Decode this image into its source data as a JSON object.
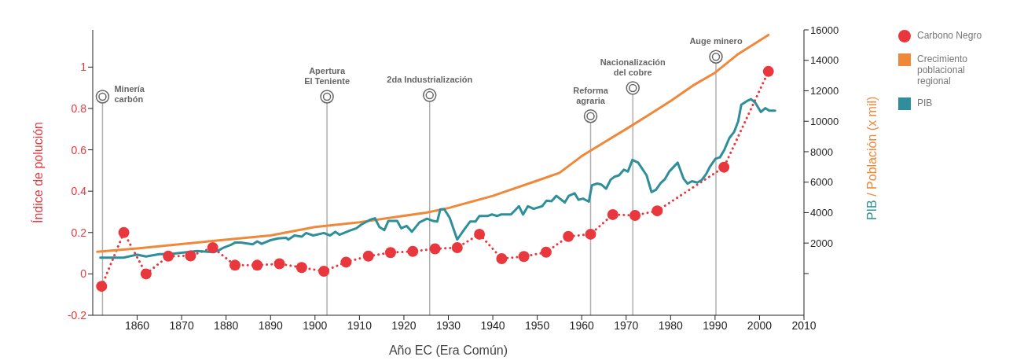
{
  "chart_data": {
    "type": "line",
    "xlabel": "Año EC (Era Común)",
    "ylabel": "Índice de polución",
    "y2label": "PIB / Población (x mil)",
    "xlim": [
      1850,
      2010
    ],
    "xticks": [
      1860,
      1870,
      1880,
      1890,
      1900,
      1910,
      1920,
      1930,
      1940,
      1950,
      1960,
      1970,
      1980,
      1990,
      2000,
      2010
    ],
    "ylim": [
      -0.2,
      1.18
    ],
    "yticks": [
      -0.2,
      0,
      0.2,
      0.4,
      0.6,
      0.8,
      1
    ],
    "y2lim": [
      -2740,
      16000
    ],
    "y2ticks": [
      {
        "value": 0,
        "label": null
      },
      2000,
      4000,
      6000,
      8000,
      10000,
      12000,
      14000,
      16000
    ],
    "legend": "right",
    "series": [
      {
        "name": "Carbono Negro",
        "color": "#e8383d",
        "marker": "circle",
        "line_style": "dotted",
        "x": [
          1852,
          1857,
          1862,
          1867,
          1872,
          1877,
          1882,
          1887,
          1892,
          1897,
          1902,
          1907,
          1912,
          1917,
          1922,
          1927,
          1932,
          1937,
          1942,
          1947,
          1952,
          1957,
          1962,
          1967,
          1972,
          1977,
          1992,
          2002
        ],
        "values": [
          -0.06,
          0.2,
          0,
          0.086,
          0.087,
          0.127,
          0.042,
          0.042,
          0.049,
          0.031,
          0.013,
          0.057,
          0.086,
          0.103,
          0.109,
          0.121,
          0.127,
          0.192,
          0.074,
          0.084,
          0.105,
          0.181,
          0.192,
          0.287,
          0.283,
          0.305,
          0.516,
          0.979
        ]
      },
      {
        "name": "Crecimiento poblacional regional",
        "color": "#f0883a",
        "axis": "y2",
        "marker": "none",
        "line_style": "solid",
        "x": [
          1851,
          1860,
          1876,
          1890,
          1900,
          1910,
          1925,
          1930,
          1940,
          1950,
          1955,
          1960,
          1965,
          1970,
          1975,
          1980,
          1985,
          1990,
          1995,
          2002
        ],
        "values": [
          1430,
          1650,
          2110,
          2500,
          3050,
          3370,
          4000,
          4300,
          5100,
          6100,
          6610,
          7710,
          8600,
          9490,
          10400,
          11330,
          12340,
          13190,
          14370,
          15670
        ]
      },
      {
        "name": "PIB",
        "color": "#2e8f9a",
        "axis": "y2",
        "marker": "none",
        "line_style": "solid",
        "x": [
          1851.7,
          1856.9,
          1860,
          1862,
          1865,
          1867.2,
          1870,
          1873.5,
          1877.2,
          1878.3,
          1879.5,
          1881,
          1882,
          1883.3,
          1886,
          1887,
          1888,
          1890,
          1891.7,
          1893.5,
          1894,
          1895.4,
          1897,
          1898,
          1899.6,
          1902,
          1903.4,
          1904.6,
          1905.5,
          1907.8,
          1909.3,
          1910.4,
          1912.4,
          1913.5,
          1914.5,
          1915.6,
          1916.5,
          1918.5,
          1919.4,
          1920.6,
          1921.8,
          1923.5,
          1925.2,
          1926.6,
          1927.5,
          1928.2,
          1929.1,
          1930.3,
          1932,
          1933.6,
          1934.9,
          1936.1,
          1937,
          1938.9,
          1939.8,
          1941,
          1941.9,
          1944.1,
          1945.9,
          1946.8,
          1947.9,
          1949.2,
          1951.1,
          1952.1,
          1953.2,
          1954.3,
          1956.2,
          1957.1,
          1958.4,
          1959.3,
          1960.3,
          1961.6,
          1962.3,
          1963.5,
          1964.4,
          1965.5,
          1966.5,
          1967.4,
          1968.4,
          1969.5,
          1970.4,
          1971.4,
          1972.7,
          1974.6,
          1975.7,
          1976.7,
          1977.8,
          1978.7,
          1979.7,
          1981.6,
          1982.9,
          1983.8,
          1984.8,
          1986,
          1987,
          1988,
          1988.9,
          1990.1,
          1991.1,
          1992.1,
          1993.2,
          1994.3,
          1995.2,
          1995.9,
          1997.2,
          1998.1,
          1999.1,
          2000.3,
          2001.3,
          2002.2,
          2003.5
        ],
        "values": [
          1040,
          1040,
          1240,
          1120,
          1270,
          1270,
          1370,
          1480,
          1400,
          1510,
          1710,
          1870,
          2030,
          2030,
          1920,
          2110,
          1950,
          2190,
          2310,
          2350,
          2230,
          2500,
          2420,
          2660,
          2500,
          2660,
          2500,
          2740,
          2550,
          2820,
          2970,
          3210,
          3530,
          3630,
          3050,
          2850,
          3450,
          3450,
          2970,
          3130,
          2740,
          3360,
          3600,
          3450,
          3410,
          4220,
          4220,
          3660,
          2230,
          2910,
          3410,
          3410,
          3780,
          3780,
          3880,
          3780,
          3880,
          3880,
          4420,
          3870,
          4420,
          4250,
          4420,
          4790,
          4750,
          5100,
          4670,
          5100,
          5270,
          4840,
          4920,
          4720,
          5800,
          5910,
          5850,
          5570,
          6160,
          6360,
          6450,
          6820,
          6700,
          7460,
          7280,
          6450,
          5350,
          5500,
          5950,
          6190,
          6700,
          7280,
          6240,
          5900,
          6060,
          5970,
          6140,
          6530,
          7040,
          7540,
          7630,
          8130,
          8890,
          9310,
          9990,
          11080,
          11330,
          11450,
          11200,
          10610,
          10860,
          10690,
          10690
        ]
      }
    ],
    "ref_lines": [
      {
        "axis": "x",
        "value": 1852.2,
        "label": "Minería\ncarbón",
        "color": "#b0b0b0"
      },
      {
        "axis": "x",
        "value": 1902.7,
        "label": "Apertura\nEl Teniente",
        "color": "#b0b0b0"
      },
      {
        "axis": "x",
        "value": 1925.8,
        "label": "2da Industrialización",
        "color": "#b0b0b0"
      },
      {
        "axis": "x",
        "value": 1962,
        "label": "Reforma\nagraria",
        "color": "#b0b0b0"
      },
      {
        "axis": "x",
        "value": 1971.5,
        "label": "Nacionalización\ndel cobre",
        "color": "#b0b0b0"
      },
      {
        "axis": "x",
        "value": 1990.2,
        "label": "Auge minero",
        "color": "#b0b0b0"
      }
    ]
  }
}
